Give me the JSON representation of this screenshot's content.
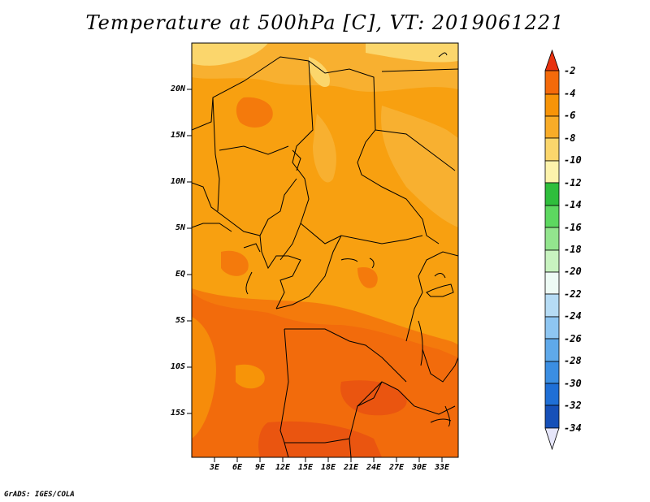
{
  "title": "Temperature at 500hPa [C], VT: 2019061221",
  "credit": "GrADS: IGES/COLA",
  "map": {
    "lon_range": [
      0,
      35
    ],
    "lat_range": [
      -20,
      24
    ],
    "y_ticks": [
      "20N",
      "15N",
      "10N",
      "5N",
      "EQ",
      "5S",
      "10S",
      "15S"
    ],
    "x_ticks": [
      "3E",
      "6E",
      "9E",
      "12E",
      "15E",
      "18E",
      "21E",
      "24E",
      "27E",
      "30E",
      "33E"
    ]
  },
  "colorbar": {
    "labels": [
      "-2",
      "-4",
      "-6",
      "-8",
      "-10",
      "-12",
      "-14",
      "-16",
      "-18",
      "-20",
      "-22",
      "-24",
      "-26",
      "-28",
      "-30",
      "-32",
      "-34"
    ],
    "colors": [
      "#e8320f",
      "#f46a0a",
      "#f79408",
      "#f8ac28",
      "#fbd66c",
      "#fdf3ac",
      "#2fbe3c",
      "#5dd860",
      "#93e58e",
      "#c8f3c0",
      "#eefbf5",
      "#b6dcf5",
      "#8ec6f2",
      "#5fa9ea",
      "#3b8ee2",
      "#1f6fd6",
      "#1650b8",
      "#0a2a7a",
      "#101060",
      "#e6e6fa"
    ]
  }
}
